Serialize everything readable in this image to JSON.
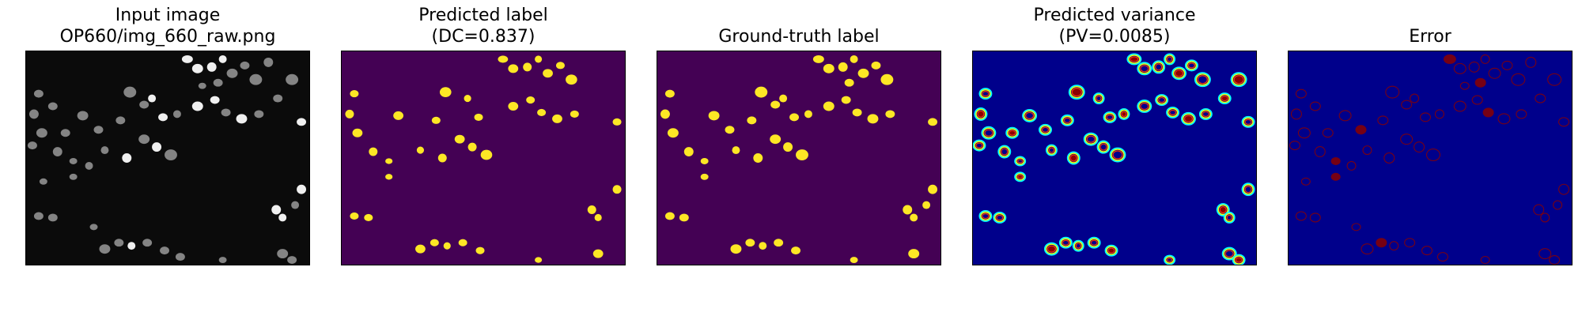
{
  "panels": [
    {
      "id": "input",
      "title_lines": [
        "Input image",
        "OP660/img_660_raw.png"
      ]
    },
    {
      "id": "pred",
      "title_lines": [
        "Predicted label",
        "(DC=0.837)"
      ]
    },
    {
      "id": "gt",
      "title_lines": [
        "Ground-truth label"
      ]
    },
    {
      "id": "variance",
      "title_lines": [
        "Predicted variance",
        "(PV=0.0085)"
      ]
    },
    {
      "id": "error",
      "title_lines": [
        "Error"
      ]
    }
  ],
  "colors": {
    "input_bg": "#0b0b0b",
    "input_cell": "#9a9a9a",
    "input_cell_bright": "#f0f0f0",
    "label_bg": "#440154",
    "label_fg": "#fde725",
    "variance_bg": "#00008b",
    "variance_ring": [
      "#00ffff",
      "#ffff00",
      "#ff3300",
      "#8b0000"
    ],
    "error_bg": "#00008b",
    "error_fg": "#8b0000"
  }
}
